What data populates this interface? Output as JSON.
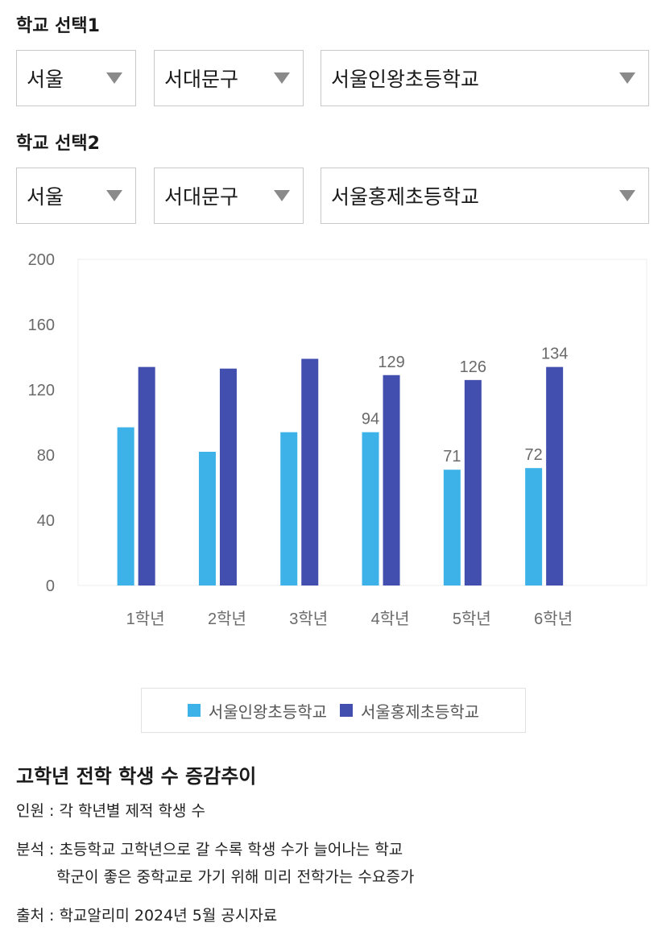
{
  "selector1": {
    "title": "학교 선택1",
    "region": "서울",
    "district": "서대문구",
    "school": "서울인왕초등학교"
  },
  "selector2": {
    "title": "학교 선택2",
    "region": "서울",
    "district": "서대문구",
    "school": "서울홍제초등학교"
  },
  "chart_data": {
    "type": "bar",
    "categories": [
      "1학년",
      "2학년",
      "3학년",
      "4학년",
      "5학년",
      "6학년"
    ],
    "series": [
      {
        "name": "서울인왕초등학교",
        "color": "#3cb2e8",
        "values": [
          97,
          82,
          94,
          94,
          71,
          72
        ],
        "labels": [
          null,
          null,
          null,
          "94",
          "71",
          "72"
        ]
      },
      {
        "name": "서울홍제초등학교",
        "color": "#424fae",
        "values": [
          134,
          133,
          139,
          129,
          126,
          134
        ],
        "labels": [
          null,
          null,
          null,
          "129",
          "126",
          "134"
        ]
      }
    ],
    "yticks": [
      "0",
      "40",
      "80",
      "120",
      "160",
      "200"
    ],
    "ylim": [
      0,
      200
    ],
    "legend": "bottom"
  },
  "notes": {
    "title": "고학년 전학 학생 수 증감추이",
    "line1": "인원 : 각 학년별 제적 학생 수",
    "line2": "분석 : 초등학교 고학년으로 갈 수록 학생 수가 늘어나는 학교",
    "line3": "학군이 좋은 중학교로 가기 위해 미리 전학가는 수요증가",
    "line4": "출처 : 학교알리미 2024년 5월 공시자료"
  }
}
